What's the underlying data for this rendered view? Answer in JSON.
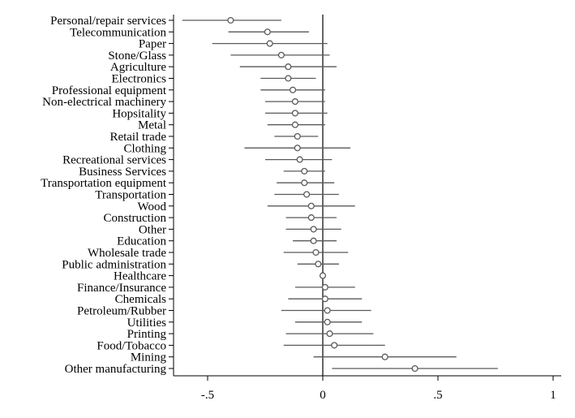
{
  "chart_data": {
    "type": "scatter",
    "subtype": "coefficient-plot-with-confidence-intervals",
    "title": "",
    "xlabel": "",
    "ylabel": "",
    "xlim": [
      -0.62,
      1.02
    ],
    "x_ticks": [
      -0.5,
      0,
      0.5,
      1
    ],
    "x_tick_labels": [
      "-.5",
      "0",
      ".5",
      "1"
    ],
    "reference_line_x": 0,
    "grid": false,
    "marker": "hollow-circle",
    "colors": {
      "marker": "#5a5a5a",
      "ci_line": "#5a5a5a",
      "axis": "#000000"
    },
    "points": [
      {
        "label": "Personal/repair services",
        "estimate": -0.4,
        "ci_low": -0.61,
        "ci_high": -0.18
      },
      {
        "label": "Telecommunication",
        "estimate": -0.24,
        "ci_low": -0.41,
        "ci_high": -0.06
      },
      {
        "label": "Paper",
        "estimate": -0.23,
        "ci_low": -0.48,
        "ci_high": 0.02
      },
      {
        "label": "Stone/Glass",
        "estimate": -0.18,
        "ci_low": -0.4,
        "ci_high": 0.03
      },
      {
        "label": "Agriculture",
        "estimate": -0.15,
        "ci_low": -0.36,
        "ci_high": 0.06
      },
      {
        "label": "Electronics",
        "estimate": -0.15,
        "ci_low": -0.27,
        "ci_high": -0.03
      },
      {
        "label": "Professional equipment",
        "estimate": -0.13,
        "ci_low": -0.27,
        "ci_high": 0.01
      },
      {
        "label": "Non-electrical machinery",
        "estimate": -0.12,
        "ci_low": -0.25,
        "ci_high": 0.01
      },
      {
        "label": "Hopsitality",
        "estimate": -0.12,
        "ci_low": -0.25,
        "ci_high": 0.02
      },
      {
        "label": "Metal",
        "estimate": -0.12,
        "ci_low": -0.24,
        "ci_high": 0.01
      },
      {
        "label": "Retail trade",
        "estimate": -0.11,
        "ci_low": -0.21,
        "ci_high": -0.02
      },
      {
        "label": "Clothing",
        "estimate": -0.11,
        "ci_low": -0.34,
        "ci_high": 0.12
      },
      {
        "label": "Recreational services",
        "estimate": -0.1,
        "ci_low": -0.25,
        "ci_high": 0.04
      },
      {
        "label": "Business Services",
        "estimate": -0.08,
        "ci_low": -0.17,
        "ci_high": 0.01
      },
      {
        "label": "Transportation equipment",
        "estimate": -0.08,
        "ci_low": -0.2,
        "ci_high": 0.05
      },
      {
        "label": "Transportation",
        "estimate": -0.07,
        "ci_low": -0.21,
        "ci_high": 0.07
      },
      {
        "label": "Wood",
        "estimate": -0.05,
        "ci_low": -0.24,
        "ci_high": 0.14
      },
      {
        "label": "Construction",
        "estimate": -0.05,
        "ci_low": -0.16,
        "ci_high": 0.06
      },
      {
        "label": "Other",
        "estimate": -0.04,
        "ci_low": -0.16,
        "ci_high": 0.08
      },
      {
        "label": "Education",
        "estimate": -0.04,
        "ci_low": -0.13,
        "ci_high": 0.06
      },
      {
        "label": "Wholesale trade",
        "estimate": -0.03,
        "ci_low": -0.17,
        "ci_high": 0.11
      },
      {
        "label": "Public administration",
        "estimate": -0.02,
        "ci_low": -0.11,
        "ci_high": 0.07
      },
      {
        "label": "Healthcare",
        "estimate": 0.0,
        "ci_low": -0.01,
        "ci_high": 0.01
      },
      {
        "label": "Finance/Insurance",
        "estimate": 0.01,
        "ci_low": -0.12,
        "ci_high": 0.14
      },
      {
        "label": "Chemicals",
        "estimate": 0.01,
        "ci_low": -0.15,
        "ci_high": 0.17
      },
      {
        "label": "Petroleum/Rubber",
        "estimate": 0.02,
        "ci_low": -0.18,
        "ci_high": 0.21
      },
      {
        "label": "Utilities",
        "estimate": 0.02,
        "ci_low": -0.12,
        "ci_high": 0.17
      },
      {
        "label": "Printing",
        "estimate": 0.03,
        "ci_low": -0.16,
        "ci_high": 0.22
      },
      {
        "label": "Food/Tobacco",
        "estimate": 0.05,
        "ci_low": -0.17,
        "ci_high": 0.27
      },
      {
        "label": "Mining",
        "estimate": 0.27,
        "ci_low": -0.04,
        "ci_high": 0.58
      },
      {
        "label": "Other manufacturing",
        "estimate": 0.4,
        "ci_low": 0.04,
        "ci_high": 0.76
      }
    ]
  }
}
